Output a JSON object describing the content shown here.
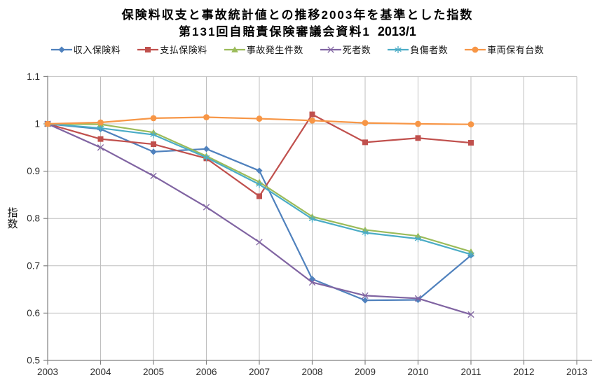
{
  "title": {
    "line1": "保険料収支と事故統計値との推移2003年を基準とした指数",
    "line2": "第131回自賠責保険審議会資料1",
    "date_label": "2013/1"
  },
  "chart_data": {
    "type": "line",
    "title": "保険料収支と事故統計値との推移2003年を基準とした指数",
    "subtitle": "第131回自賠責保険審議会資料1 2013/1",
    "ylabel": "指数",
    "xlabel": "",
    "grid": true,
    "legend_position": "top",
    "ylim": [
      0.5,
      1.1
    ],
    "xlim": [
      2003,
      2013
    ],
    "x": [
      2003,
      2004,
      2005,
      2006,
      2007,
      2008,
      2009,
      2010,
      2011
    ],
    "x_tick_labels": [
      "2003",
      "2004",
      "2005",
      "2006",
      "2007",
      "2008",
      "2009",
      "2010",
      "2011",
      "2012",
      "2013"
    ],
    "x_tick_values": [
      2003,
      2004,
      2005,
      2006,
      2007,
      2008,
      2009,
      2010,
      2011,
      2012,
      2013
    ],
    "y_tick_labels": [
      "1.1",
      "1",
      "0.9",
      "0.8",
      "0.7",
      "0.6",
      "0.5"
    ],
    "y_tick_values": [
      1.1,
      1.0,
      0.9,
      0.8,
      0.7,
      0.6,
      0.5
    ],
    "gridline_color": "#BFBFBF",
    "axis_color": "#808080",
    "tick_text_color": "#2b2b2b",
    "series": [
      {
        "name": "収入保険料",
        "color": "#4F81BD",
        "marker": "diamond",
        "values": [
          1.0,
          0.989,
          0.941,
          0.947,
          0.901,
          0.672,
          0.627,
          0.628,
          0.722
        ]
      },
      {
        "name": "支払保険料",
        "color": "#C0504D",
        "marker": "square",
        "values": [
          1.0,
          0.968,
          0.957,
          0.927,
          0.847,
          1.02,
          0.961,
          0.97,
          0.96
        ]
      },
      {
        "name": "事故発生件数",
        "color": "#9BBB59",
        "marker": "triangle",
        "values": [
          1.0,
          0.999,
          0.982,
          0.932,
          0.877,
          0.804,
          0.776,
          0.763,
          0.73
        ]
      },
      {
        "name": "死者数",
        "color": "#8064A2",
        "marker": "x",
        "values": [
          1.0,
          0.95,
          0.89,
          0.824,
          0.75,
          0.665,
          0.637,
          0.631,
          0.597
        ]
      },
      {
        "name": "負傷者数",
        "color": "#4BACC6",
        "marker": "asterisk",
        "values": [
          1.0,
          0.991,
          0.977,
          0.929,
          0.872,
          0.799,
          0.77,
          0.757,
          0.724
        ]
      },
      {
        "name": "車両保有台数",
        "color": "#F79646",
        "marker": "circle",
        "values": [
          1.0,
          1.003,
          1.012,
          1.014,
          1.011,
          1.007,
          1.002,
          1.0,
          0.999
        ]
      }
    ]
  }
}
